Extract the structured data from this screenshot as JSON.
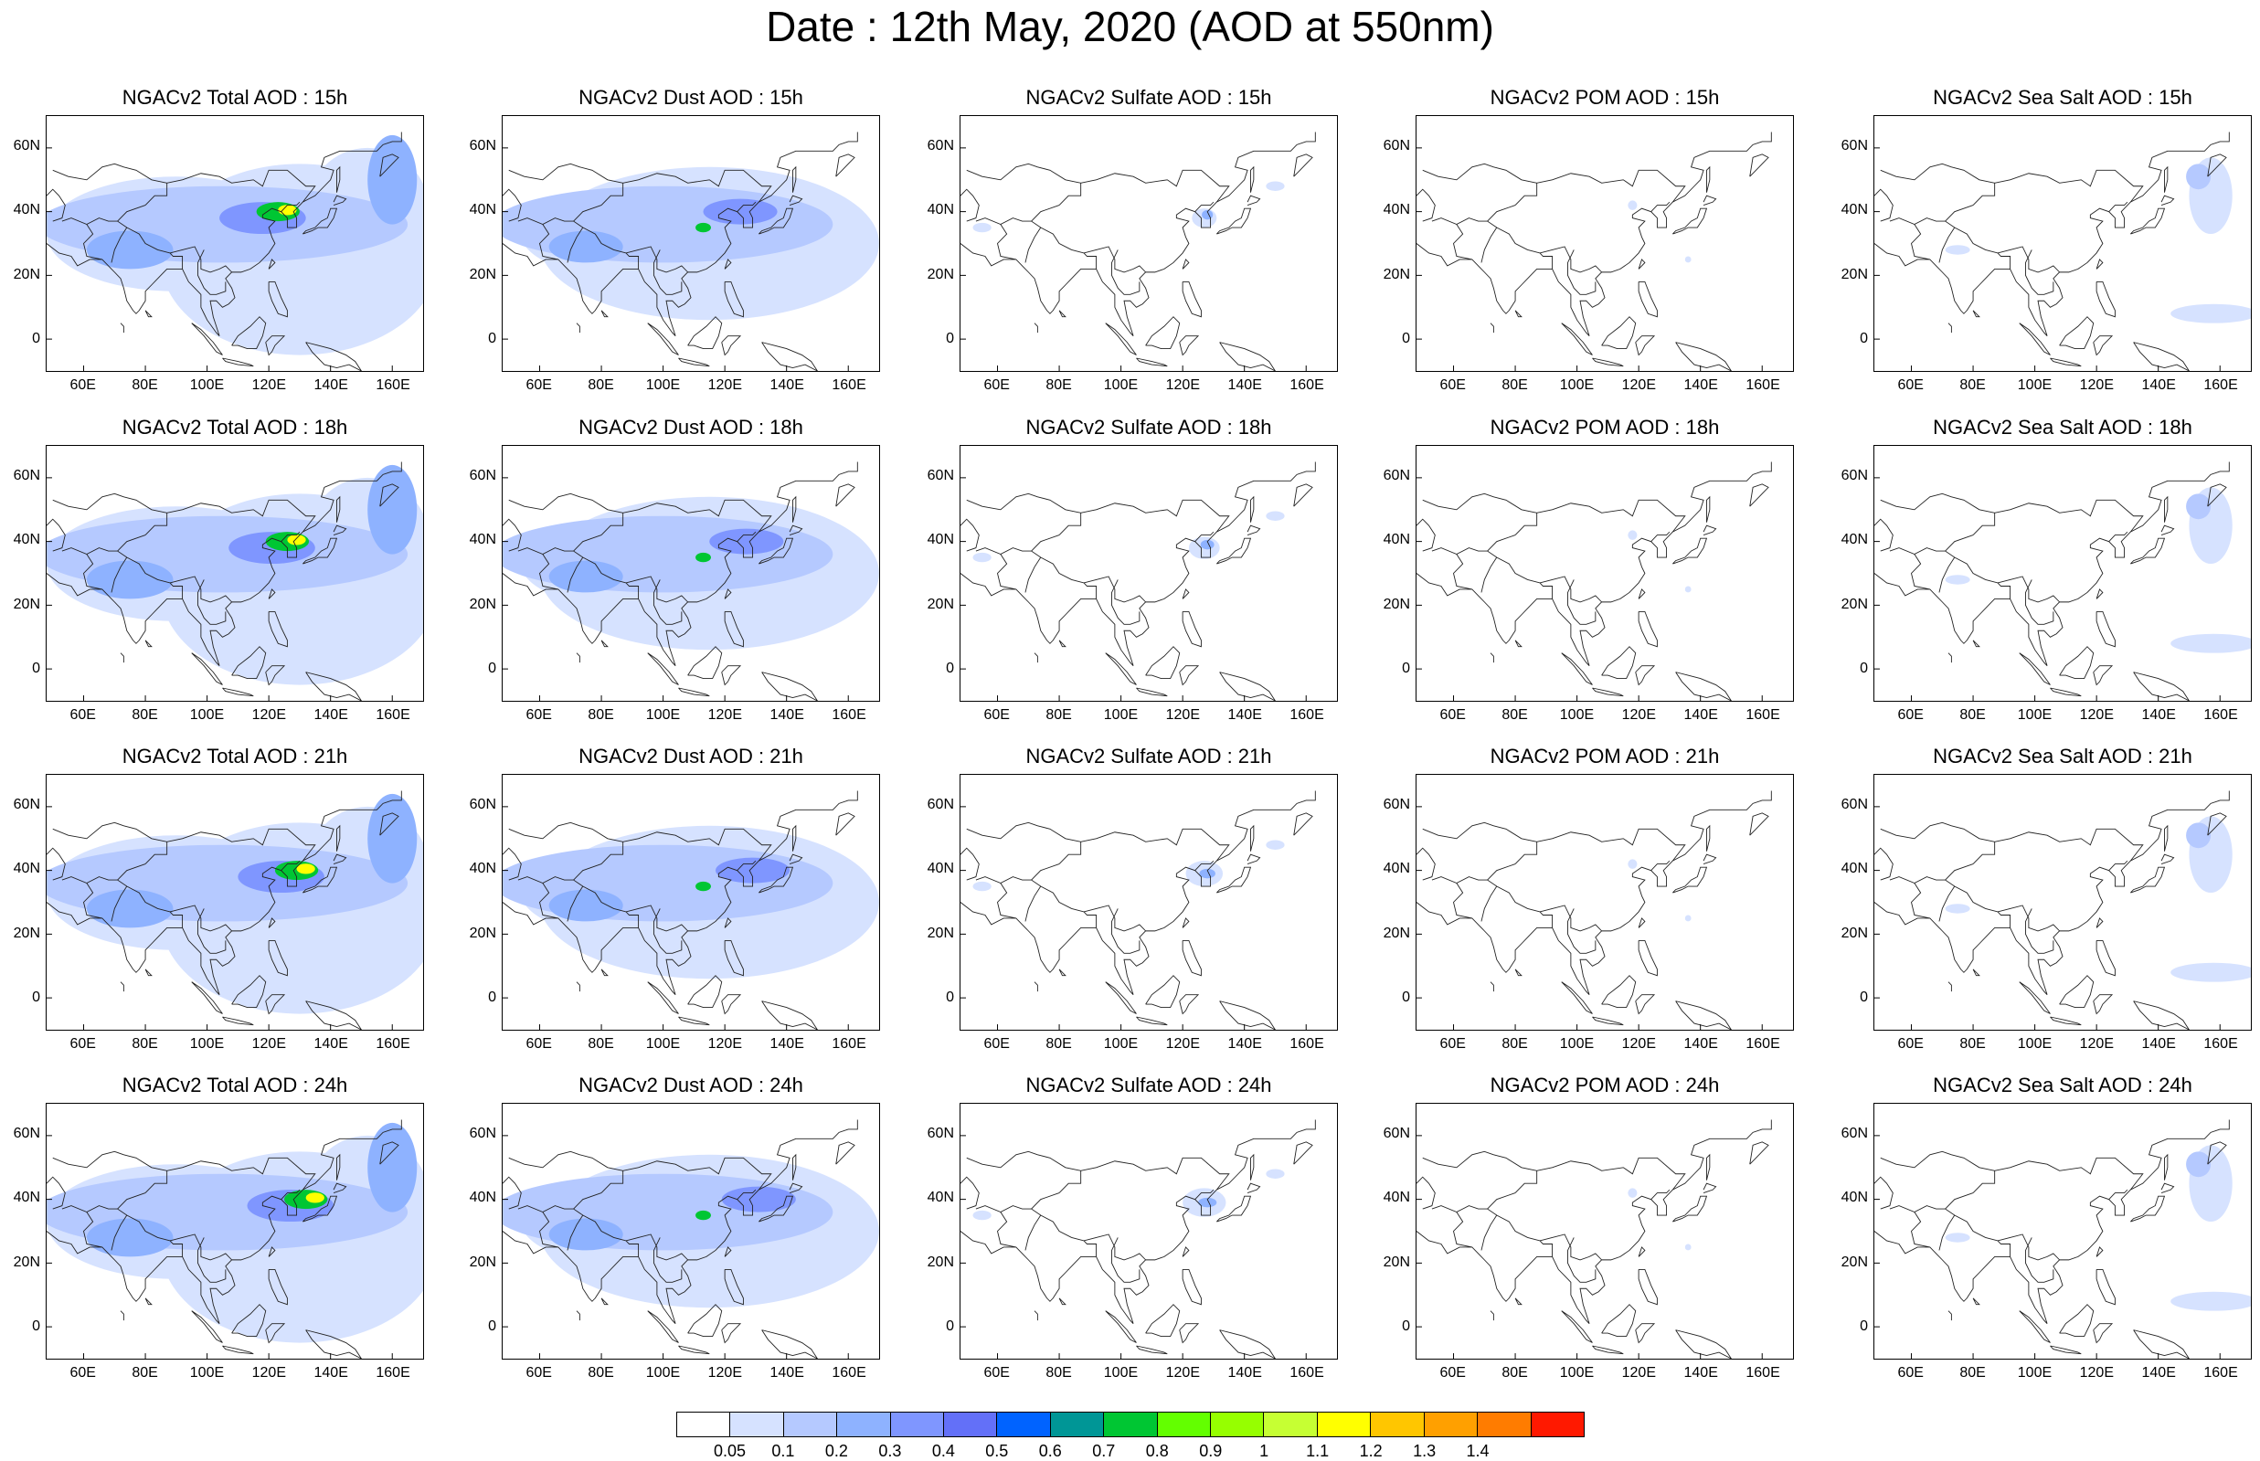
{
  "title": "Date : 12th May, 2020 (AOD at 550nm)",
  "lat_ticks": [
    "60N",
    "40N",
    "20N",
    "0"
  ],
  "lon_ticks": [
    "60E",
    "80E",
    "100E",
    "120E",
    "140E",
    "160E"
  ],
  "rows": [
    {
      "hour": "15h",
      "panels": [
        {
          "species": "total",
          "title": "NGACv2 Total AOD : 15h"
        },
        {
          "species": "dust",
          "title": "NGACv2 Dust AOD : 15h"
        },
        {
          "species": "sulfate",
          "title": "NGACv2 Sulfate AOD : 15h"
        },
        {
          "species": "pom",
          "title": "NGACv2 POM AOD : 15h"
        },
        {
          "species": "seasalt",
          "title": "NGACv2 Sea Salt AOD : 15h"
        }
      ]
    },
    {
      "hour": "18h",
      "panels": [
        {
          "species": "total",
          "title": "NGACv2 Total AOD : 18h"
        },
        {
          "species": "dust",
          "title": "NGACv2 Dust AOD : 18h"
        },
        {
          "species": "sulfate",
          "title": "NGACv2 Sulfate AOD : 18h"
        },
        {
          "species": "pom",
          "title": "NGACv2 POM AOD : 18h"
        },
        {
          "species": "seasalt",
          "title": "NGACv2 Sea Salt AOD : 18h"
        }
      ]
    },
    {
      "hour": "21h",
      "panels": [
        {
          "species": "total",
          "title": "NGACv2 Total AOD : 21h"
        },
        {
          "species": "dust",
          "title": "NGACv2 Dust AOD : 21h"
        },
        {
          "species": "sulfate",
          "title": "NGACv2 Sulfate AOD : 21h"
        },
        {
          "species": "pom",
          "title": "NGACv2 POM AOD : 21h"
        },
        {
          "species": "seasalt",
          "title": "NGACv2 Sea Salt AOD : 21h"
        }
      ]
    },
    {
      "hour": "24h",
      "panels": [
        {
          "species": "total",
          "title": "NGACv2 Total AOD : 24h"
        },
        {
          "species": "dust",
          "title": "NGACv2 Dust AOD : 24h"
        },
        {
          "species": "sulfate",
          "title": "NGACv2 Sulfate AOD : 24h"
        },
        {
          "species": "pom",
          "title": "NGACv2 POM AOD : 24h"
        },
        {
          "species": "seasalt",
          "title": "NGACv2 Sea Salt  AOD : 24h"
        }
      ]
    }
  ],
  "colorbar": {
    "labels": [
      "0.05",
      "0.1",
      "0.2",
      "0.3",
      "0.4",
      "0.5",
      "0.6",
      "0.7",
      "0.8",
      "0.9",
      "1",
      "1.1",
      "1.2",
      "1.3",
      "1.4"
    ],
    "colors": [
      "#ffffff",
      "#d6e2ff",
      "#b5c9ff",
      "#8eb2ff",
      "#7f96ff",
      "#6370f8",
      "#0063ff",
      "#009696",
      "#00c633",
      "#63ff00",
      "#96ff00",
      "#c6ff33",
      "#ffff00",
      "#ffc600",
      "#ffa000",
      "#ff7c00",
      "#ff1900"
    ]
  }
}
